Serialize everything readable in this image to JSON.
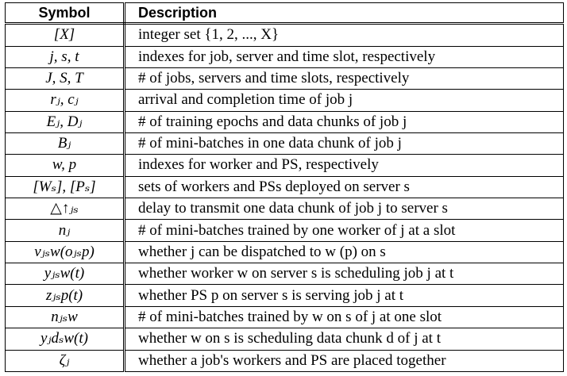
{
  "table": {
    "headers": {
      "symbol": "Symbol",
      "description": "Description"
    },
    "rows": [
      {
        "symbol": "[X]",
        "description": "integer set {1, 2, ..., X}"
      },
      {
        "symbol": "j, s, t",
        "description": "indexes for job, server and time slot, respectively"
      },
      {
        "symbol": "J, S, T",
        "description": "# of jobs, servers and time slots, respectively"
      },
      {
        "symbol": "rⱼ, cⱼ",
        "description": "arrival and completion time of job j"
      },
      {
        "symbol": "Eⱼ, Dⱼ",
        "description": "# of training epochs and data chunks of job j"
      },
      {
        "symbol": "Bⱼ",
        "description": "# of mini-batches in one data chunk of job j"
      },
      {
        "symbol": "w, p",
        "description": "indexes for worker and PS, respectively"
      },
      {
        "symbol": "[Wₛ], [Pₛ]",
        "description": "sets of workers and PSs deployed on server s"
      },
      {
        "symbol": "△↑ⱼₛ",
        "description": "delay to transmit one data chunk of job j to server s"
      },
      {
        "symbol": "nⱼ",
        "description": "# of mini-batches trained by one worker of j at a slot"
      },
      {
        "symbol": "vⱼₛw(oⱼₛp)",
        "description": "whether j can be dispatched to w (p) on s"
      },
      {
        "symbol": "yⱼₛw(t)",
        "description": "whether worker w on server s is scheduling job j at t"
      },
      {
        "symbol": "zⱼₛp(t)",
        "description": "whether PS p on server s is serving job j at t"
      },
      {
        "symbol": "nⱼₛw",
        "description": "# of mini-batches trained by w on s of j at one slot"
      },
      {
        "symbol": "yⱼdₛw(t)",
        "description": "whether w on s is scheduling data chunk d of j at t"
      },
      {
        "symbol": "ζⱼ",
        "description": "whether a job's workers and PS are placed together"
      }
    ]
  }
}
